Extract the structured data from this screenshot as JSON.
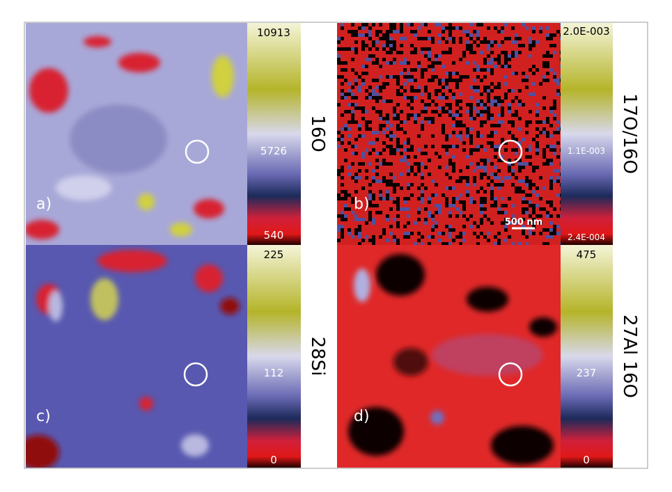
{
  "panels": [
    {
      "label": "a)",
      "ion": "16O",
      "scale_top": "10913",
      "scale_mid": "5726",
      "scale_bottom": "540"
    },
    {
      "label": "b)",
      "ion": "17O/16O",
      "scale_top": "2.0E-003",
      "scale_mid": "1.1E-003",
      "scale_bottom": "2.4E-004",
      "scale_bar": "500 nm"
    },
    {
      "label": "c)",
      "ion": "28Si",
      "scale_top": "225",
      "scale_mid": "112",
      "scale_bottom": "0"
    },
    {
      "label": "d)",
      "ion": "27Al 16O",
      "scale_top": "475",
      "scale_mid": "237",
      "scale_bottom": "0"
    }
  ]
}
